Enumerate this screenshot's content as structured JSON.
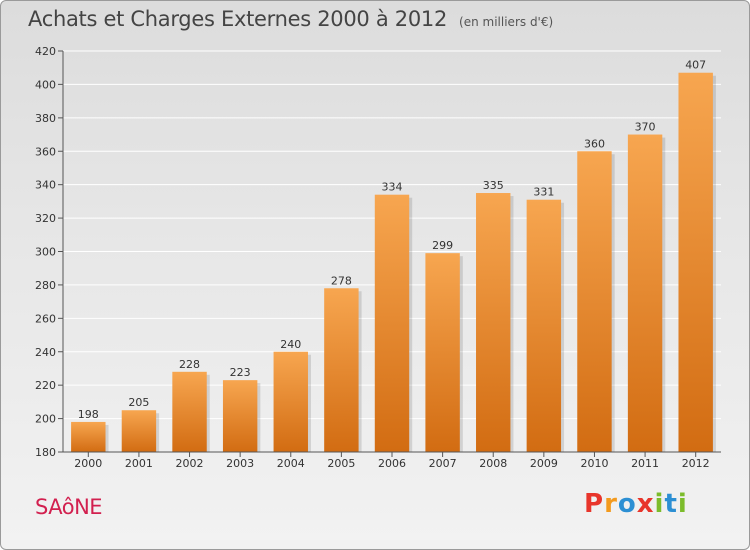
{
  "chart_data": {
    "type": "bar",
    "title": "Achats et Charges Externes 2000 à 2012",
    "subtitle": "(en milliers d'€)",
    "categories": [
      "2000",
      "2001",
      "2002",
      "2003",
      "2004",
      "2005",
      "2006",
      "2007",
      "2008",
      "2009",
      "2010",
      "2011",
      "2012"
    ],
    "values": [
      198,
      205,
      228,
      223,
      240,
      278,
      334,
      299,
      335,
      331,
      360,
      370,
      407
    ],
    "ylim": [
      180,
      420
    ],
    "yticks": [
      180,
      200,
      220,
      240,
      260,
      280,
      300,
      320,
      340,
      360,
      380,
      400,
      420
    ],
    "grid": true,
    "xlabel": "",
    "ylabel": ""
  },
  "footer": {
    "commune": "SAôNE",
    "logo_letters": [
      "P",
      "r",
      "o",
      "x",
      "i",
      "t",
      "i"
    ],
    "logo_colors": [
      "#e8352b",
      "#f39a1d",
      "#2c8fd3",
      "#e8352b",
      "#7cbc2b",
      "#2c8fd3",
      "#7cbc2b"
    ]
  },
  "colors": {
    "bar_top": "#f7a650",
    "bar_bottom": "#d26c12",
    "grid": "#ffffff",
    "axis": "#555555"
  }
}
